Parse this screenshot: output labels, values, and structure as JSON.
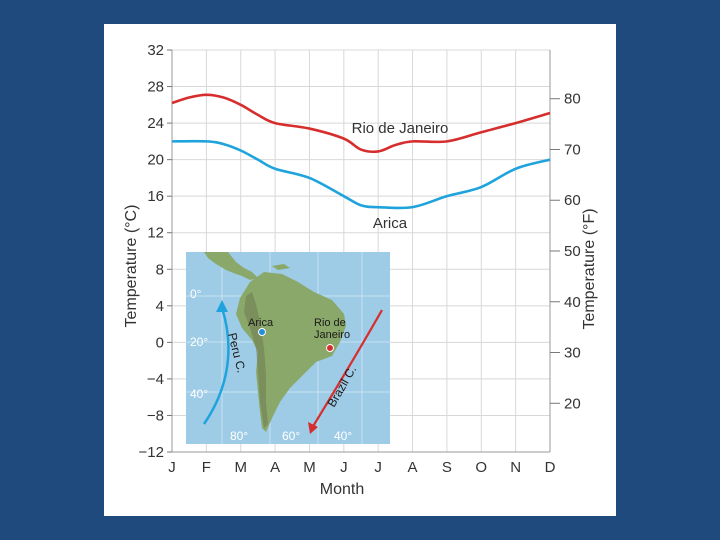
{
  "chart_data": {
    "type": "line",
    "xlabel": "Month",
    "ylabel_left": "Temperature (°C)",
    "ylabel_right": "Temperature (°F)",
    "categories": [
      "J",
      "F",
      "M",
      "A",
      "M",
      "J",
      "J",
      "A",
      "S",
      "O",
      "N",
      "D"
    ],
    "y_ticks_left": [
      "32",
      "28",
      "24",
      "20",
      "16",
      "12",
      "8",
      "4",
      "0",
      "−4",
      "−8",
      "−12"
    ],
    "y_ticks_left_values": [
      32,
      28,
      24,
      20,
      16,
      12,
      8,
      4,
      0,
      -4,
      -8,
      -12
    ],
    "y_ticks_right": [
      "80",
      "70",
      "60",
      "50",
      "40",
      "30",
      "20"
    ],
    "y_ticks_right_values": [
      80,
      70,
      60,
      50,
      40,
      30,
      20
    ],
    "ylim": [
      -12,
      32
    ],
    "grid": true,
    "series": [
      {
        "name": "Rio de Janeiro",
        "color": "#d62e2e",
        "x": [
          0,
          0.5,
          1,
          1.5,
          2,
          2.5,
          3,
          4,
          5,
          5.5,
          6,
          6.5,
          7,
          8,
          9,
          10,
          11
        ],
        "values": [
          26.2,
          26.8,
          27.1,
          26.8,
          26.0,
          24.9,
          24.0,
          23.4,
          22.3,
          21.1,
          20.9,
          21.6,
          22.0,
          22.0,
          23.0,
          24.0,
          25.1
        ]
      },
      {
        "name": "Arica",
        "color": "#1fa3dc",
        "x": [
          0,
          1,
          1.5,
          2,
          2.5,
          3,
          4,
          5,
          5.5,
          6,
          7,
          8,
          9,
          10,
          11
        ],
        "values": [
          22.0,
          22.0,
          21.7,
          21.0,
          20.0,
          19.0,
          18.0,
          16.0,
          15.0,
          14.8,
          14.8,
          16.0,
          17.0,
          19.0,
          20.0
        ]
      }
    ]
  },
  "inset_map": {
    "labels": {
      "arica": "Arica",
      "rio_line1": "Rio de",
      "rio_line2": "Janeiro",
      "peru_current": "Peru C.",
      "brazil_current": "Brazil C."
    },
    "lat_labels": [
      "0°",
      "20°",
      "40°"
    ],
    "lon_labels": [
      "80°",
      "60°",
      "40°"
    ],
    "colors": {
      "ocean": "#9ecbe6",
      "land": "#8aa86a",
      "cold_current": "#1fa3dc",
      "warm_current": "#d62e2e"
    }
  }
}
